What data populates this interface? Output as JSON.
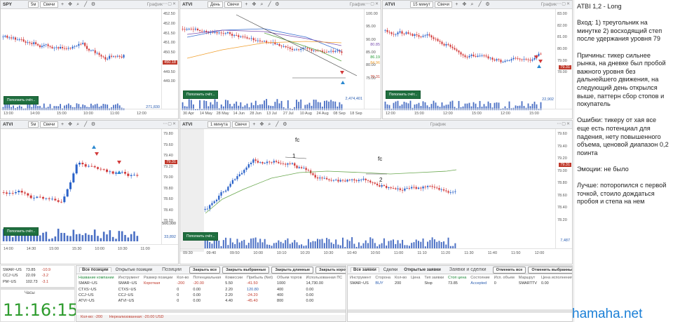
{
  "charts": [
    {
      "ticker": "SPY",
      "interval": "5м",
      "type": "Свечи",
      "title": "График",
      "prices": [
        "452.50",
        "452.00",
        "451.50",
        "451.00",
        "450.50",
        "450.00",
        "449.50",
        "449.00"
      ],
      "current": "450.18",
      "volume": "271,830",
      "times": [
        "13:00",
        "14:00",
        "15:00",
        "10:00",
        "11:00",
        "12:00"
      ],
      "button": "Пополнить счёт..."
    },
    {
      "ticker": "ATVI",
      "interval": "День",
      "type": "Свечи",
      "title": "График",
      "prices": [
        "100.00",
        "95.00",
        "90.00",
        "85.00",
        "80.00",
        "75.00"
      ],
      "labels": [
        "86.19",
        "84.96",
        "80.85",
        "79.31"
      ],
      "volume": "2,474,401",
      "times": [
        "30 Apr",
        "14 May",
        "28 May",
        "14 Jun",
        "28 Jun",
        "13 Jul",
        "27 Jul",
        "10 Aug",
        "24 Aug",
        "08 Sep",
        "18 Sep"
      ],
      "button": "Пополнить счёт..."
    },
    {
      "ticker": "ATVI",
      "interval": "15 минут",
      "type": "Свечи",
      "title": "График",
      "prices": [
        "83.00",
        "82.00",
        "81.00",
        "80.00",
        "79.00",
        "78.00"
      ],
      "current": "79.31",
      "volume": "22,902",
      "times": [
        "12:00",
        "15:00",
        "12:00",
        "15:00",
        "12:00",
        "15:00"
      ],
      "button": "Пополнить счёт..."
    },
    {
      "ticker": "ATVI",
      "interval": "5м",
      "type": "Свечи",
      "title": "",
      "prices": [
        "79.80",
        "79.60",
        "79.40",
        "79.20",
        "79.00",
        "78.80",
        "78.60",
        "78.40",
        "78.20"
      ],
      "current": "79.31",
      "volume": "33,892",
      "volume_top": "500,000",
      "times": [
        "14:00",
        "14:30",
        "15:00",
        "15:30",
        "10:00",
        "10:30",
        "11:00"
      ],
      "button": "Пополнить счёт..."
    },
    {
      "ticker": "ATVI",
      "interval": "1 минута",
      "type": "Свечи",
      "title": "График",
      "prices": [
        "79.60",
        "79.40",
        "79.20",
        "79.00",
        "78.80",
        "78.60",
        "78.40",
        "78.20"
      ],
      "current": "79.31",
      "volume": "7,487",
      "times": [
        "09:30",
        "09:40",
        "09:50",
        "10:00",
        "10:10",
        "10:20",
        "10:30",
        "10:40",
        "10:50",
        "11:00",
        "11:10",
        "11:20",
        "11:30",
        "11:40",
        "11:50",
        "12:00"
      ],
      "annotations": [
        "fc",
        "1",
        "fc",
        "2"
      ],
      "button": "Пополнить счёт..."
    }
  ],
  "notes": {
    "title": "ATBI 1,2 - Long",
    "entry": "Вход: 1) треугольник на минутке 2) восходящий степ после удержания уровня 79",
    "reasons": "Причины: тикер сильнее рынка, на дневке был пробой важного уровня без дальнейшего движения, на следующий день открылся выше, паттерн сбор стопов и покупатель",
    "mistakes": "Ошибки: тикеру от хая все еще есть потенциал для падения, нету повышенного объема, ценовой диапазон 0,2 поинта",
    "emotions": "Эмоции: не было",
    "better": "Лучше: поторопился с первой точкой, стоило дождаться пробоя и степа на нем"
  },
  "watchlist": {
    "rows": [
      [
        "SMAR~US",
        "73.85",
        "-10.9"
      ],
      [
        "CCJ~US",
        "22.09",
        "-3.2"
      ],
      [
        "PM~US",
        "102.73",
        "-3.1"
      ]
    ],
    "clock_label": "Часы",
    "clock": "11:16:15"
  },
  "positions": {
    "tabs": [
      "Все позиции",
      "Открытые позиции"
    ],
    "title": "Позиции",
    "buttons": [
      "Закрыть все",
      "Закрыть выбранные",
      "Закрыть длинные",
      "Закрыть короткие"
    ],
    "headers": [
      "Название компании",
      "Инструмент",
      "Размер позиции",
      "Кол-во",
      "Потенциальная",
      "Комиссии",
      "Прибыль (Net)",
      "Объем торгов",
      "Использованная ПС"
    ],
    "rows": [
      [
        "SMAR~US",
        "SMAR~US",
        "Короткая",
        "-200",
        "-20.00",
        "5.50",
        "-41.50",
        "1000",
        "14,730.00"
      ],
      [
        "CTXS~US",
        "CTXS~US",
        "",
        "0",
        "0.00",
        "2.20",
        "120.80",
        "400",
        "0.00"
      ],
      [
        "CCJ~US",
        "CCJ~US",
        "",
        "0",
        "0.00",
        "2.20",
        "-24.20",
        "400",
        "0.00"
      ],
      [
        "ATVI~US",
        "ATVI~US",
        "",
        "0",
        "0.00",
        "4.40",
        "-45.40",
        "800",
        "0.00"
      ]
    ],
    "footer_qty": "Кол-во: -200",
    "footer_unreal": "Нереализованная: -20.00 USD"
  },
  "orders": {
    "tabs": [
      "Все заявки",
      "Сделки",
      "Открытые заявки"
    ],
    "title": "Заявки и сделки",
    "buttons": [
      "Отменить все",
      "Отменить выбранные"
    ],
    "headers": [
      "Инструмент",
      "Сторона",
      "Кол-во",
      "Цена",
      "Тип заявки",
      "Стоп цена",
      "Состояние",
      "Исп. объем",
      "Маршрут",
      "Цена исполнения"
    ],
    "row": [
      "SMAR~US",
      "BUY",
      "200",
      "",
      "Stop",
      "73.85",
      "Accepted",
      "0",
      "SMARTTV",
      "0.00"
    ]
  },
  "watermark": "hamaha.net"
}
